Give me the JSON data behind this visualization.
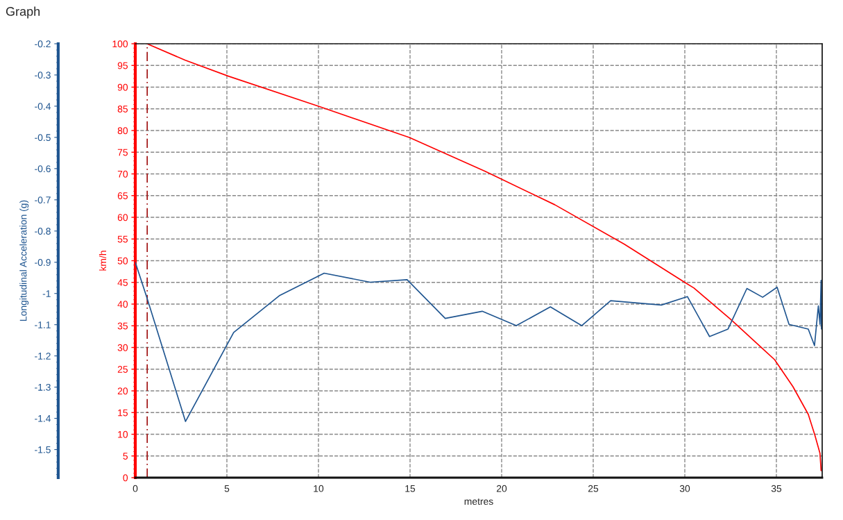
{
  "chart_data": {
    "type": "line",
    "title": "Graph",
    "xlabel": "metres",
    "ylabel": "km/h",
    "y2label": "Longitudinal Acceleration (g)",
    "xlim": [
      0,
      37.5
    ],
    "xticks": [
      0,
      5,
      10,
      15,
      20,
      25,
      30,
      35
    ],
    "ylim": [
      0,
      100
    ],
    "yticks": [
      0,
      5,
      10,
      15,
      20,
      25,
      30,
      35,
      40,
      45,
      50,
      55,
      60,
      65,
      70,
      75,
      80,
      85,
      90,
      95,
      100
    ],
    "y2lim": [
      -1.59,
      -0.2
    ],
    "y2ticks": [
      -1.5,
      -1.4,
      -1.3,
      -1.2,
      -1.1,
      -1,
      -0.9,
      -0.8,
      -0.7,
      -0.6,
      -0.5,
      -0.4,
      -0.3,
      -0.2
    ],
    "grid": true,
    "legend": false,
    "marker": "none",
    "line_style": "solid",
    "ref_lines": [
      {
        "axis": "x",
        "value": 0.65,
        "color": "#a01010",
        "line_style": "dashed"
      }
    ],
    "series": [
      {
        "color": "#ff0000",
        "x": [
          0.64,
          2.73,
          5.1,
          10,
          14.96,
          19.1,
          22.9,
          26.7,
          30,
          30.5,
          32.5,
          34.9,
          35.9,
          36.74,
          37.1,
          37.38,
          37.44
        ],
        "values": [
          100,
          96.2,
          92.5,
          85.6,
          78.4,
          70.6,
          62.9,
          53.8,
          45.0,
          43.7,
          36.5,
          27.2,
          21.0,
          14.6,
          9.8,
          5.6,
          1.6
        ]
      },
      {
        "color": "#1f5590",
        "axis": "y2",
        "x": [
          0,
          0.67,
          2.74,
          5.37,
          7.89,
          10.31,
          12.82,
          14.84,
          16.92,
          18.94,
          20.8,
          22.66,
          24.37,
          25.95,
          28.72,
          30.14,
          31.35,
          32.36,
          33.39,
          34.25,
          35.04,
          35.69,
          36.74,
          37.08,
          37.29,
          37.38,
          37.44,
          37.46
        ],
        "values": [
          -0.9,
          -1.02,
          -1.41,
          -1.125,
          -1.006,
          -0.935,
          -0.964,
          -0.956,
          -1.08,
          -1.057,
          -1.103,
          -1.043,
          -1.103,
          -1.023,
          -1.037,
          -1.01,
          -1.138,
          -1.114,
          -0.984,
          -1.012,
          -0.98,
          -1.099,
          -1.114,
          -1.167,
          -1.04,
          -1.099,
          -0.958,
          -1.114
        ]
      }
    ]
  }
}
